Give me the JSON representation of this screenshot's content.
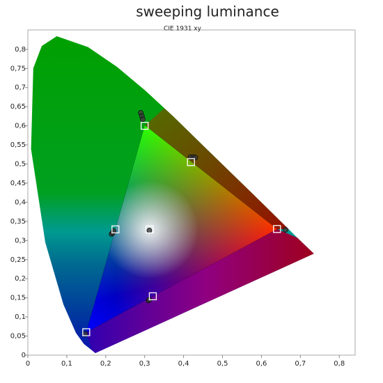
{
  "chart_data": {
    "type": "scatter",
    "title": "sweeping luminance",
    "subtitle": "CIE 1931 xy",
    "xlim": [
      0,
      0.84
    ],
    "ylim": [
      0,
      0.85
    ],
    "xticks": [
      0,
      {
        "value": 0.1,
        "label": "0,1"
      },
      {
        "value": 0.2,
        "label": "0,2"
      },
      {
        "value": 0.3,
        "label": "0,3"
      },
      {
        "value": 0.4,
        "label": "0,4"
      },
      {
        "value": 0.5,
        "label": "0,5"
      },
      {
        "value": 0.6,
        "label": "0,6"
      },
      {
        "value": 0.7,
        "label": "0,7"
      },
      {
        "value": 0.8,
        "label": "0,8"
      }
    ],
    "yticks": [
      0,
      {
        "value": 0.05,
        "label": "0,05"
      },
      {
        "value": 0.1,
        "label": "0,1"
      },
      {
        "value": 0.15,
        "label": "0,15"
      },
      {
        "value": 0.2,
        "label": "0,2"
      },
      {
        "value": 0.25,
        "label": "0,25"
      },
      {
        "value": 0.3,
        "label": "0,3"
      },
      {
        "value": 0.35,
        "label": "0,35"
      },
      {
        "value": 0.4,
        "label": "0,4"
      },
      {
        "value": 0.45,
        "label": "0,45"
      },
      {
        "value": 0.5,
        "label": "0,5"
      },
      {
        "value": 0.55,
        "label": "0,55"
      },
      {
        "value": 0.6,
        "label": "0,6"
      },
      {
        "value": 0.65,
        "label": "0,65"
      },
      {
        "value": 0.7,
        "label": "0,7"
      },
      {
        "value": 0.75,
        "label": "0,75"
      },
      {
        "value": 0.8,
        "label": "0,8"
      }
    ],
    "series": [
      {
        "marker": "circle",
        "color": "#3c3c3c",
        "x": [
          0.662,
          0.29,
          0.293,
          0.295,
          0.147,
          0.418,
          0.425,
          0.43,
          0.215,
          0.218,
          0.22,
          0.31,
          0.312,
          0.312
        ],
        "values": [
          0.328,
          0.634,
          0.625,
          0.617,
          0.055,
          0.518,
          0.518,
          0.517,
          0.317,
          0.32,
          0.325,
          0.143,
          0.145,
          0.326
        ]
      },
      {
        "marker": "square",
        "color": "#ffffff",
        "x": [
          0.64,
          0.3,
          0.15,
          0.419,
          0.225,
          0.321,
          0.3127
        ],
        "values": [
          0.33,
          0.6,
          0.06,
          0.505,
          0.329,
          0.154,
          0.329
        ]
      }
    ]
  }
}
